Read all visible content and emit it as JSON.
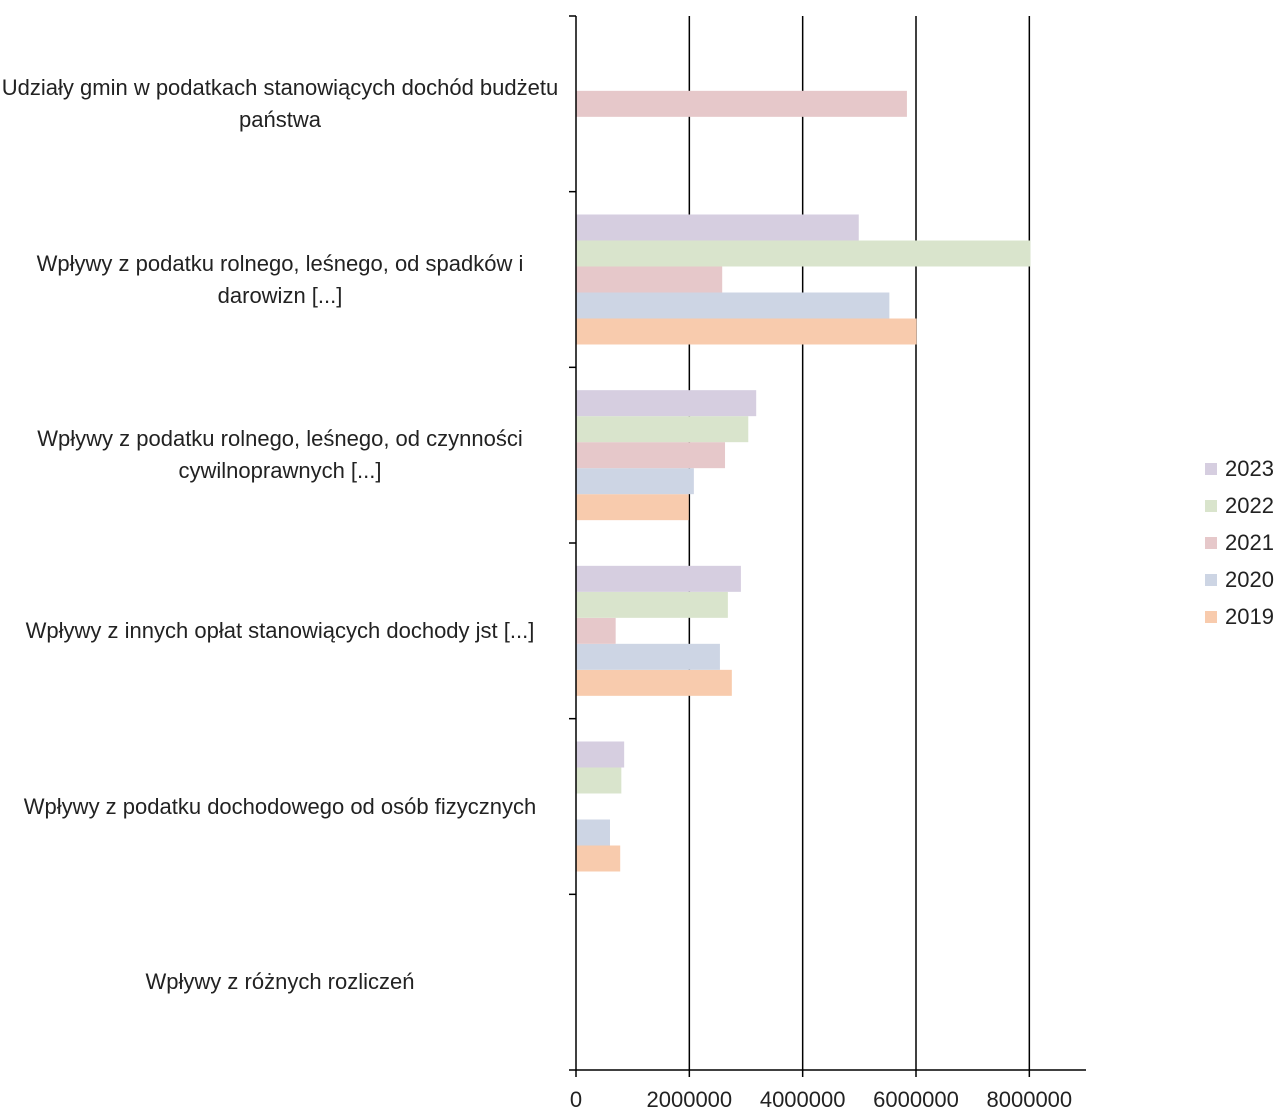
{
  "chart_data": {
    "type": "bar",
    "orientation": "horizontal",
    "title": "",
    "xlabel": "",
    "ylabel": "",
    "xlim": [
      0,
      9000000
    ],
    "x_ticks": [
      0,
      2000000,
      4000000,
      6000000,
      8000000
    ],
    "x_tick_labels": [
      "0",
      "2000000",
      "4000000",
      "6000000",
      "8000000"
    ],
    "grid": "vertical major gridlines",
    "legend_position": "right",
    "categories": [
      "Wpływy z różnych rozliczeń",
      "Wpływy z podatku dochodowego od osób fizycznych",
      "Wpływy z innych opłat stanowiących dochody jst [...]",
      "Wpływy z podatku rolnego, leśnego, od czynności cywilnoprawnych [...]",
      "Wpływy z podatku rolnego, leśnego, od spadków i darowizn [...]",
      "Udziały gmin w podatkach stanowiących dochód budżetu państwa"
    ],
    "series": [
      {
        "name": "2019",
        "color": "#f8cbad",
        "values": [
          0,
          780000,
          2750000,
          1990000,
          6010000,
          0
        ]
      },
      {
        "name": "2020",
        "color": "#cdd5e4",
        "values": [
          0,
          600000,
          2540000,
          2080000,
          5530000,
          0
        ]
      },
      {
        "name": "2021",
        "color": "#e6c8ca",
        "values": [
          0,
          0,
          700000,
          2630000,
          2580000,
          5840000
        ]
      },
      {
        "name": "2022",
        "color": "#d9e4cc",
        "values": [
          0,
          800000,
          2680000,
          3040000,
          8020000,
          0
        ]
      },
      {
        "name": "2023",
        "color": "#d6cee0",
        "values": [
          0,
          850000,
          2910000,
          3180000,
          4990000,
          0
        ]
      }
    ],
    "legend_order": [
      "2023",
      "2022",
      "2021",
      "2020",
      "2019"
    ]
  }
}
